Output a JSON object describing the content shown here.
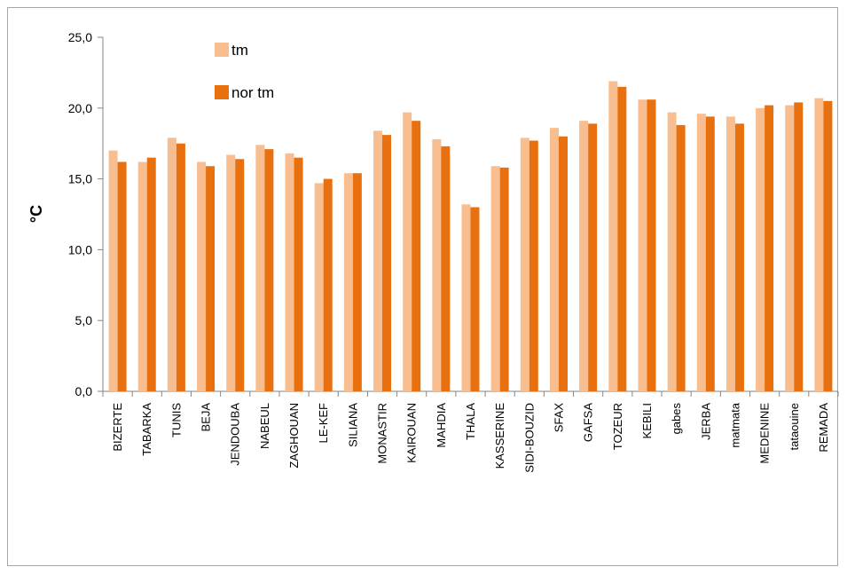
{
  "chart_data": {
    "type": "bar",
    "ylabel": "°C",
    "ylim": [
      0,
      25
    ],
    "yticks": [
      "0,0",
      "5,0",
      "10,0",
      "15,0",
      "20,0",
      "25,0"
    ],
    "ytick_values": [
      0,
      5,
      10,
      15,
      20,
      25
    ],
    "grid": false,
    "legend_position": "top-left",
    "categories": [
      "BIZERTE",
      "TABARKA",
      "TUNIS",
      "BEJA",
      "JENDOUBA",
      "NABEUL",
      "ZAGHOUAN",
      "LE-KEF",
      "SILIANA",
      "MONASTIR",
      "KAIROUAN",
      "MAHDIA",
      "THALA",
      "KASSERINE",
      "SIDI-BOUZID",
      "SFAX",
      "GAFSA",
      "TOZEUR",
      "KEBILI",
      "gabes",
      "JERBA",
      "matmata",
      "MEDENINE",
      "tataouine",
      "REMADA"
    ],
    "series": [
      {
        "name": "tm",
        "color": "#f8be8f",
        "values": [
          17.0,
          16.2,
          17.9,
          16.2,
          16.7,
          17.4,
          16.8,
          14.7,
          15.4,
          18.4,
          19.7,
          17.8,
          13.2,
          15.9,
          17.9,
          18.6,
          19.1,
          21.9,
          20.6,
          19.7,
          19.6,
          19.4,
          20.0,
          20.2,
          20.7
        ]
      },
      {
        "name": "nor tm",
        "color": "#e8700f",
        "values": [
          16.2,
          16.5,
          17.5,
          15.9,
          16.4,
          17.1,
          16.5,
          15.0,
          15.4,
          18.1,
          19.1,
          17.3,
          13.0,
          15.8,
          17.7,
          18.0,
          18.9,
          21.5,
          20.6,
          18.8,
          19.4,
          18.9,
          20.2,
          20.4,
          20.5
        ]
      }
    ]
  }
}
